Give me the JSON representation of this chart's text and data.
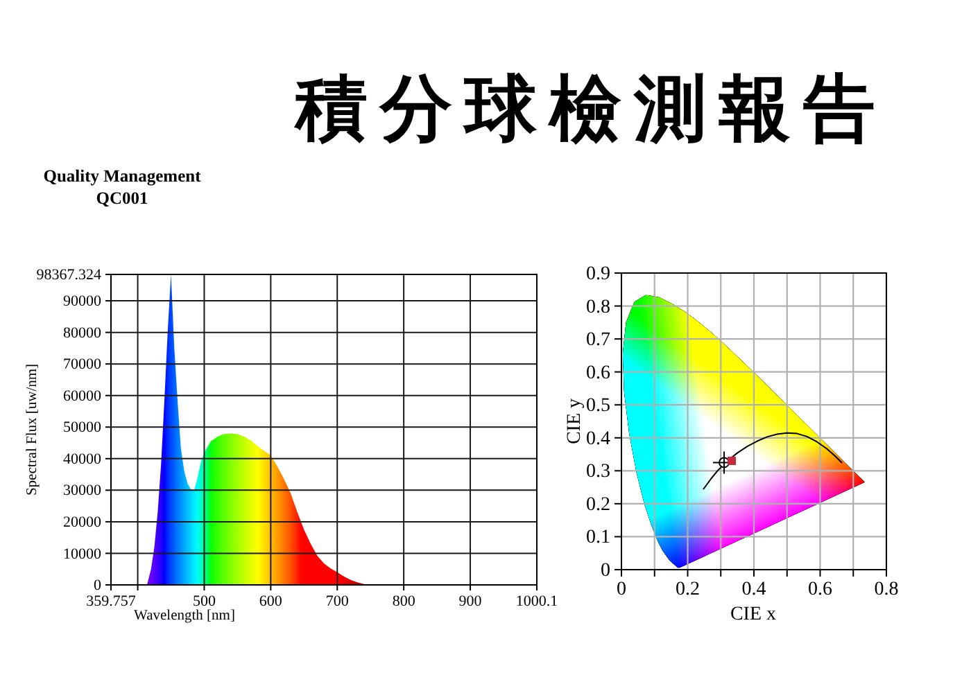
{
  "chart_data": [
    {
      "type": "other",
      "title": "積分球檢測報告",
      "annotations": [
        "Quality Management",
        "QC001"
      ]
    },
    {
      "type": "area",
      "x": [
        414,
        420,
        425,
        430,
        435,
        440,
        445,
        450,
        455,
        460,
        465,
        470,
        475,
        480,
        485,
        490,
        495,
        500,
        510,
        520,
        530,
        540,
        550,
        560,
        570,
        580,
        590,
        600,
        610,
        620,
        630,
        640,
        650,
        660,
        670,
        680,
        690,
        700,
        710,
        720,
        730,
        740,
        745
      ],
      "values": [
        0,
        5000,
        12000,
        23000,
        38000,
        58000,
        80000,
        98367.324,
        75000,
        58000,
        43000,
        36000,
        32000,
        30300,
        30000,
        34000,
        39000,
        42000,
        45500,
        47000,
        47800,
        48000,
        47800,
        47000,
        45800,
        44000,
        42500,
        41000,
        37500,
        33500,
        29000,
        23000,
        17500,
        13000,
        9200,
        6800,
        5200,
        4000,
        2700,
        1600,
        800,
        250,
        0
      ],
      "xlim": [
        359.757,
        1000.1
      ],
      "ylim": [
        0,
        98367.324
      ],
      "xticks": [
        359.757,
        {
          "value": 400,
          "label": null
        },
        500,
        600,
        700,
        800,
        900,
        1000.1
      ],
      "yticks": [
        0,
        10000,
        20000,
        30000,
        40000,
        50000,
        60000,
        70000,
        80000,
        90000,
        98367.324
      ],
      "xlabel": "Wavelength [nm]",
      "ylabel": "Spectral Flux [uw/nm]",
      "grid": true
    },
    {
      "type": "scatter",
      "series": [
        {
          "type": "line",
          "x": [
            0.248,
            0.27,
            0.29,
            0.31,
            0.33,
            0.35,
            0.38,
            0.41,
            0.44,
            0.47,
            0.5,
            0.53,
            0.56,
            0.59,
            0.62,
            0.645,
            0.665
          ],
          "values": [
            0.245,
            0.275,
            0.3,
            0.32,
            0.338,
            0.354,
            0.374,
            0.39,
            0.403,
            0.411,
            0.415,
            0.413,
            0.404,
            0.388,
            0.367,
            0.345,
            0.325
          ],
          "color": "#000000"
        },
        {
          "type": "scatter",
          "x": [
            0.31
          ],
          "values": [
            0.325
          ],
          "color": "#000000",
          "marker": "cross"
        },
        {
          "type": "scatter",
          "x": [
            0.333
          ],
          "values": [
            0.33
          ],
          "color": "#c8283c",
          "marker": "square"
        }
      ],
      "xlim": [
        0,
        0.8
      ],
      "ylim": [
        0,
        0.9
      ],
      "xticks": [
        0,
        {
          "value": 0.1,
          "label": null
        },
        0.2,
        {
          "value": 0.3,
          "label": null
        },
        0.4,
        {
          "value": 0.5,
          "label": null
        },
        0.6,
        {
          "value": 0.7,
          "label": null
        },
        0.8
      ],
      "yticks": [
        0,
        0.1,
        0.2,
        0.3,
        0.4,
        0.5,
        0.6,
        0.7,
        0.8,
        0.9
      ],
      "xlabel": "CIE x",
      "ylabel": "CIE y",
      "grid": true
    }
  ]
}
